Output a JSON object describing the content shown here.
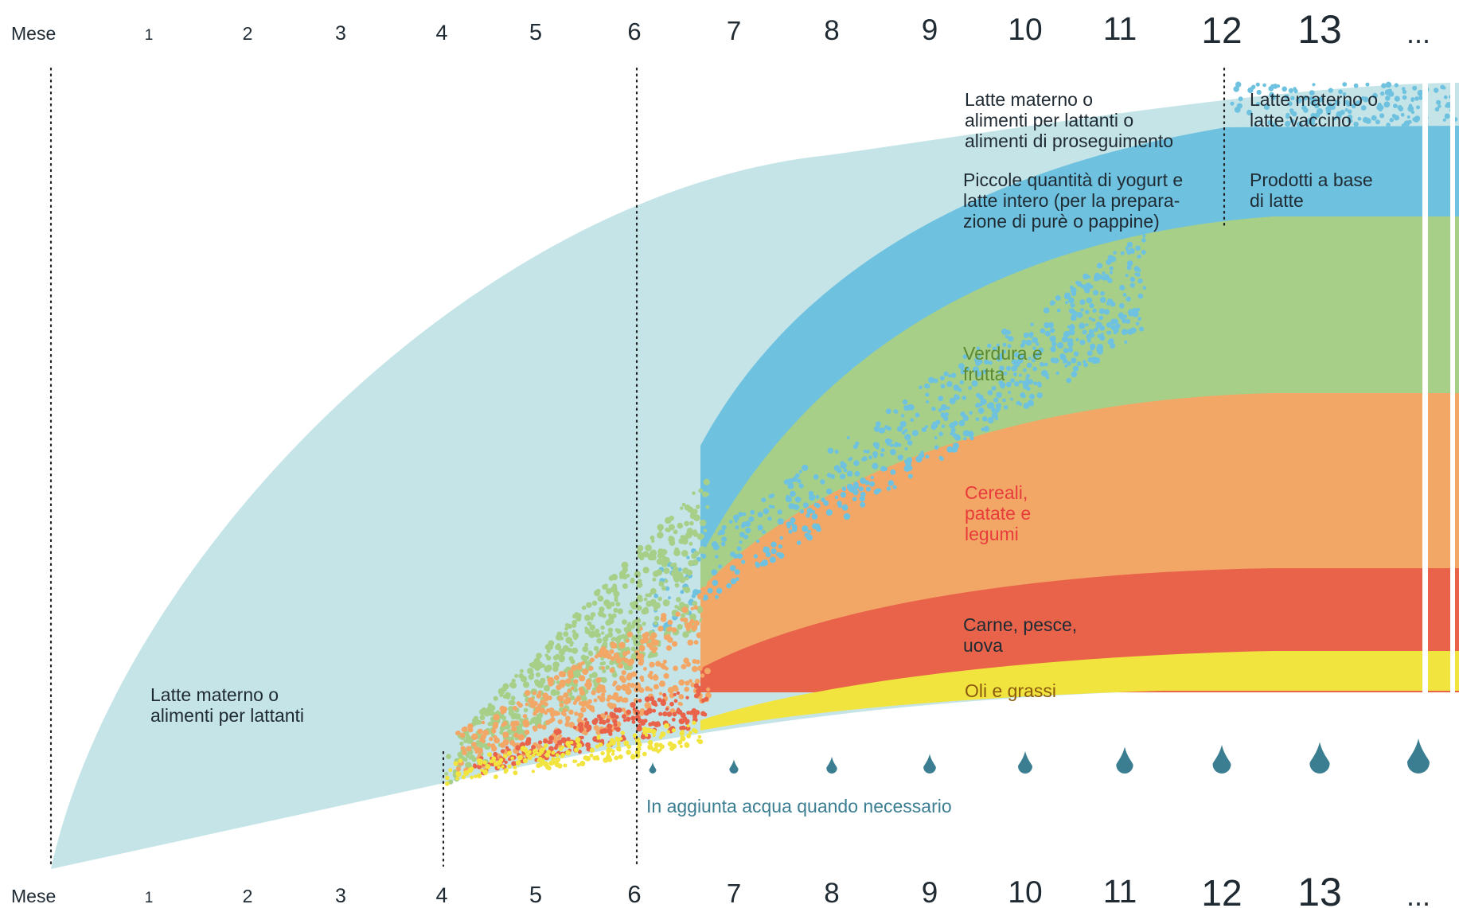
{
  "axis": {
    "label": "Mese",
    "months": [
      "1",
      "2",
      "3",
      "4",
      "5",
      "6",
      "7",
      "8",
      "9",
      "10",
      "11",
      "12",
      "13",
      "..."
    ]
  },
  "bands": [
    {
      "id": "milk",
      "color": "#c4e4e8"
    },
    {
      "id": "dairy",
      "color": "#6ec2df"
    },
    {
      "id": "vegetables",
      "color": "#a8cf88"
    },
    {
      "id": "cereals",
      "color": "#f3a767"
    },
    {
      "id": "meat",
      "color": "#e8634a"
    },
    {
      "id": "oils",
      "color": "#f2e43f"
    }
  ],
  "water_drops": {
    "color": "#3b7e92",
    "count": 9
  },
  "labels": {
    "milk_early": [
      "Latte materno o",
      "alimenti per lattanti"
    ],
    "milk_late": [
      "Latte materno o",
      "alimenti per lattanti o",
      "alimenti di proseguimento"
    ],
    "milk_after12": [
      "Latte materno o",
      "latte vaccino"
    ],
    "dairy_before12": [
      "Piccole quantità di yogurt e",
      "latte intero (per la prepara-",
      "zione di purè o pappine)"
    ],
    "dairy_after12": [
      "Prodotti a base",
      "di latte"
    ],
    "vegetables": [
      "Verdura e",
      "frutta"
    ],
    "cereals": [
      "Cereali,",
      "patate e",
      "legumi"
    ],
    "meat": [
      "Carne, pesce,",
      "uova"
    ],
    "oils": [
      "Oli e grassi"
    ],
    "water": "In aggiunta acqua quando necessario"
  },
  "text_colors": {
    "dark": "#1f2a33",
    "vegetables": "#5b8a34",
    "cereals": "#e83c3c",
    "oils": "#8a5a10",
    "water": "#3b7e92"
  }
}
